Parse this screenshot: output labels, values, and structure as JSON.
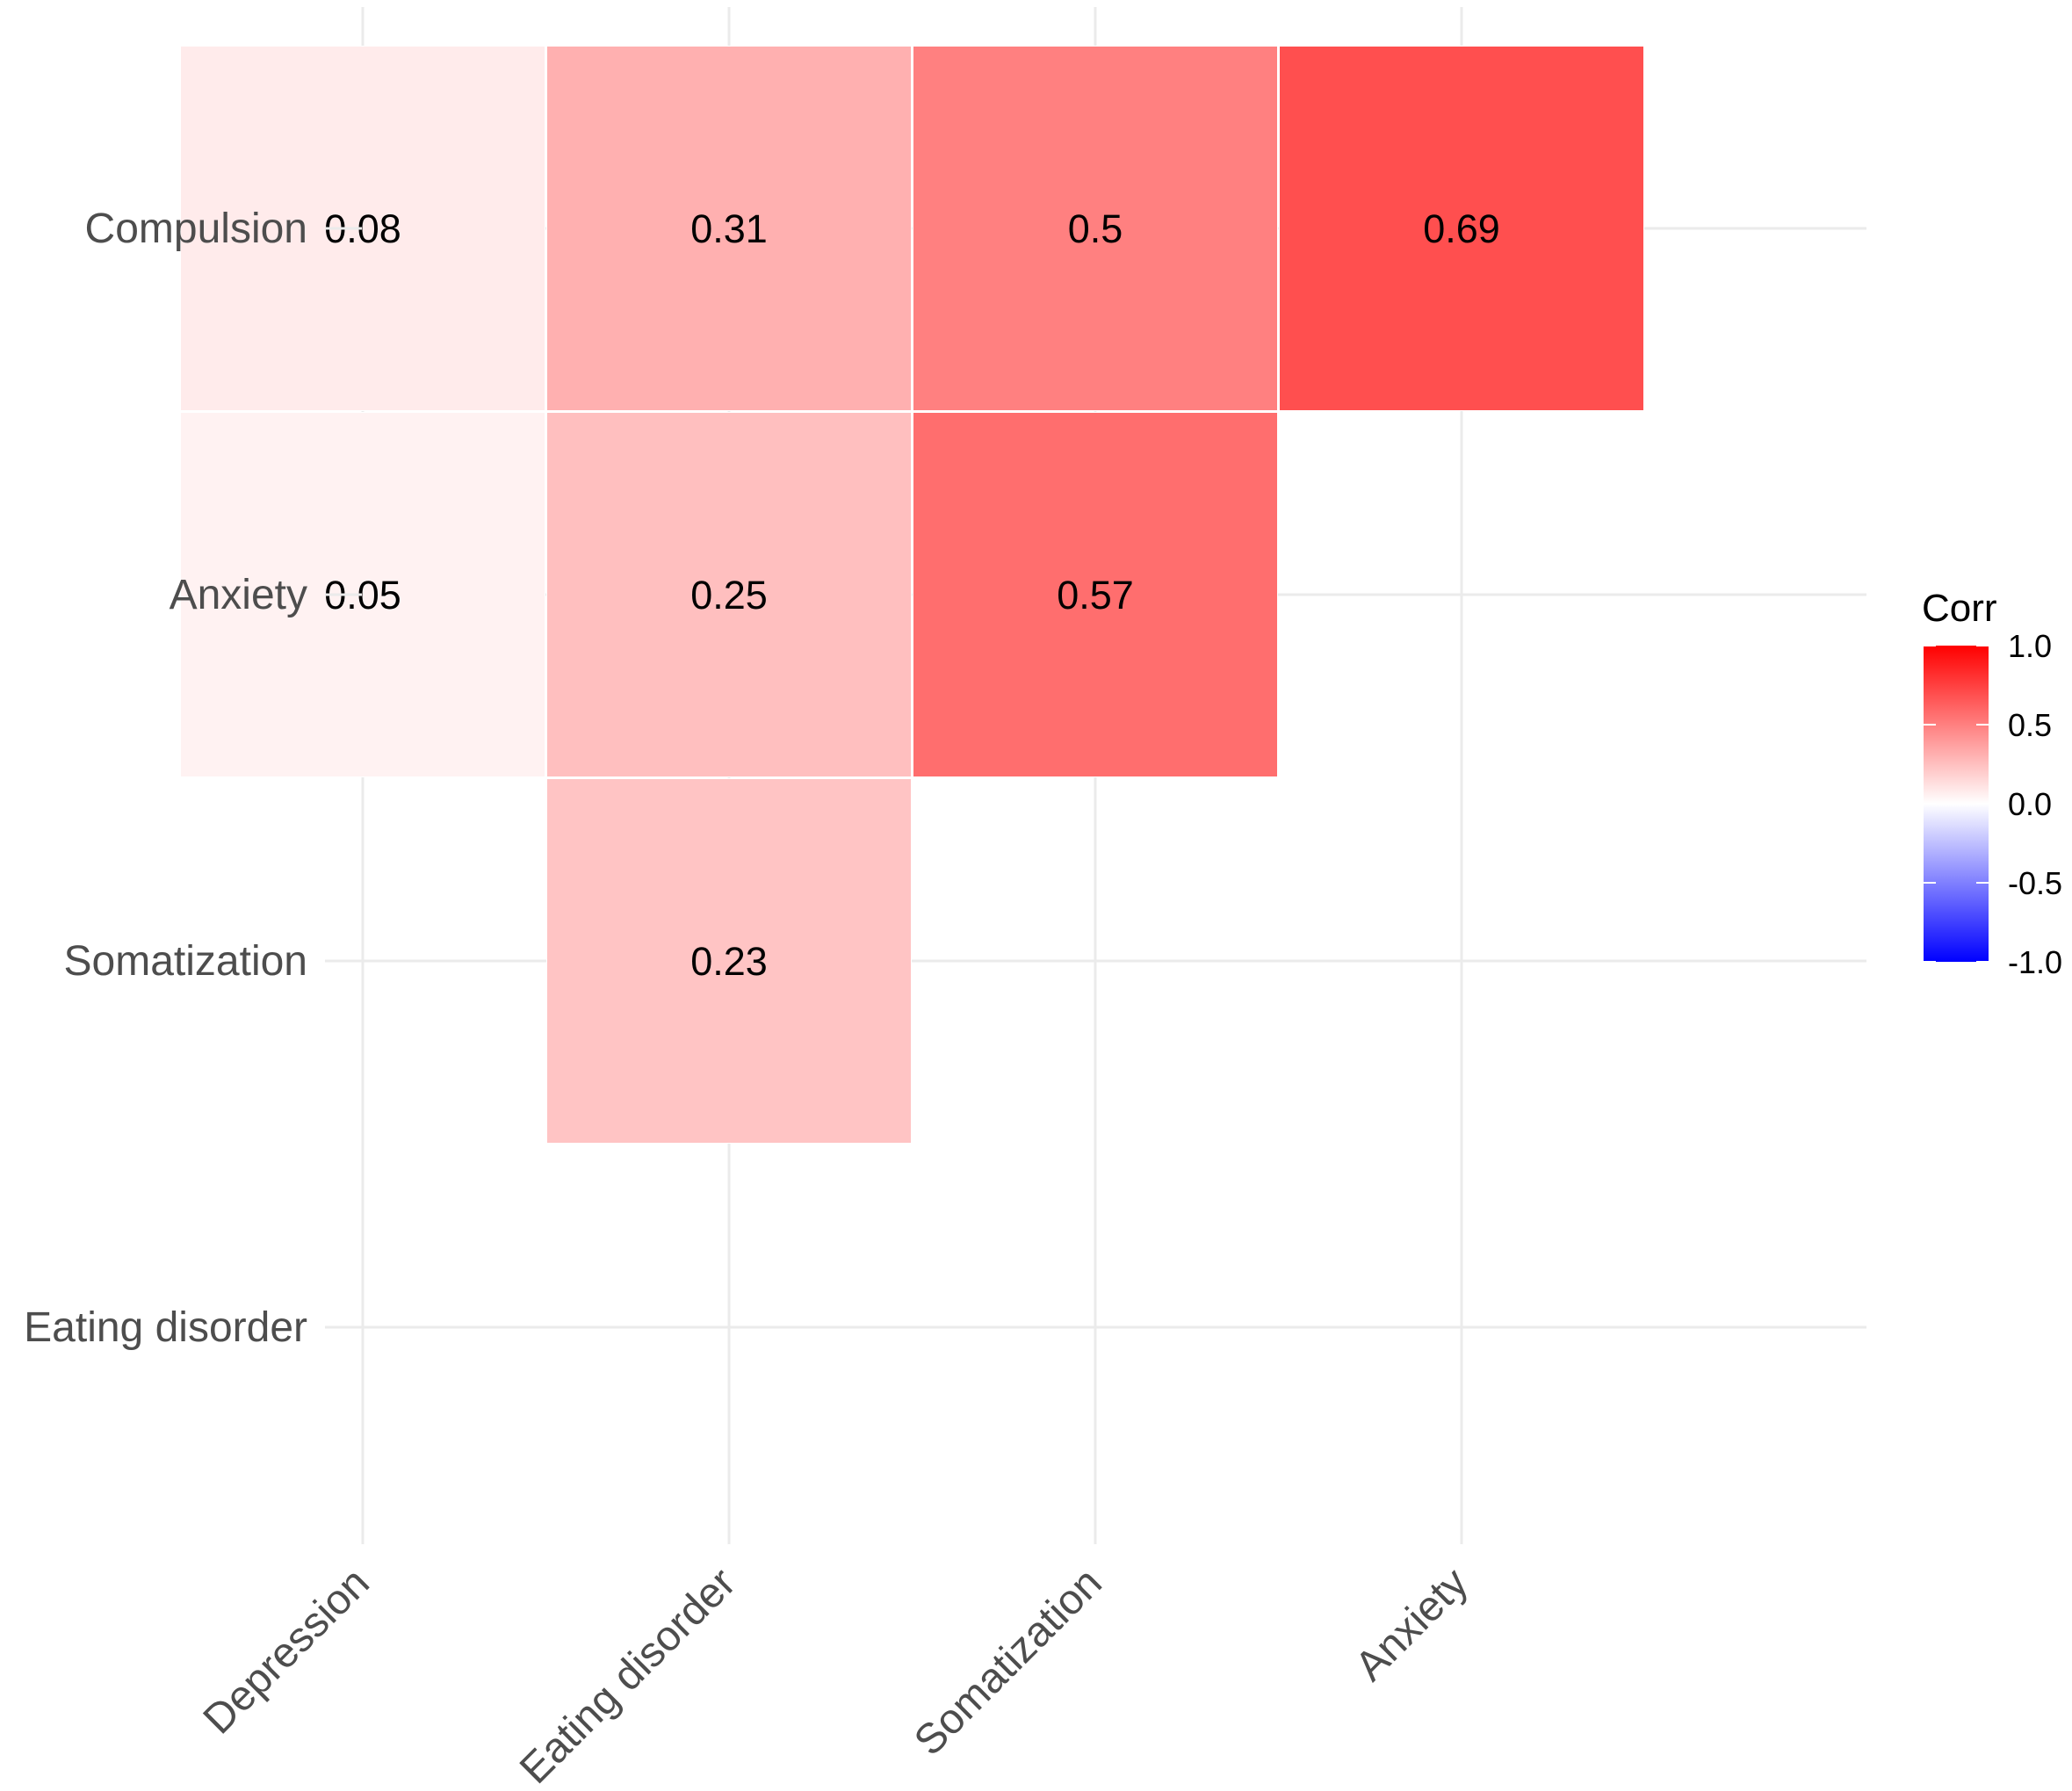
{
  "chart_data": {
    "type": "heatmap",
    "title": "",
    "xlabel": "",
    "ylabel": "",
    "x_categories": [
      "Depression",
      "Eating disorder",
      "Somatization",
      "Anxiety"
    ],
    "y_categories": [
      "Compulsion",
      "Anxiety",
      "Somatization",
      "Eating disorder"
    ],
    "cells": [
      {
        "x": "Depression",
        "y": "Compulsion",
        "value": 0.08,
        "label": "0.08"
      },
      {
        "x": "Eating disorder",
        "y": "Compulsion",
        "value": 0.31,
        "label": "0.31"
      },
      {
        "x": "Somatization",
        "y": "Compulsion",
        "value": 0.5,
        "label": "0.5"
      },
      {
        "x": "Anxiety",
        "y": "Compulsion",
        "value": 0.69,
        "label": "0.69"
      },
      {
        "x": "Depression",
        "y": "Anxiety",
        "value": 0.05,
        "label": "0.05"
      },
      {
        "x": "Eating disorder",
        "y": "Anxiety",
        "value": 0.25,
        "label": "0.25"
      },
      {
        "x": "Somatization",
        "y": "Anxiety",
        "value": 0.57,
        "label": "0.57"
      },
      {
        "x": "Eating disorder",
        "y": "Somatization",
        "value": 0.23,
        "label": "0.23"
      }
    ],
    "legend": {
      "title": "Corr",
      "range": [
        -1.0,
        1.0
      ],
      "ticks": [
        1.0,
        0.5,
        0.0,
        -0.5,
        -1.0
      ],
      "tick_labels": [
        "1.0",
        "0.5",
        "0.0",
        "-0.5",
        "-1.0"
      ],
      "colors": {
        "low": "#0000ff",
        "mid": "#ffffff",
        "high": "#ff0000"
      },
      "position": "right"
    },
    "grid": true
  }
}
